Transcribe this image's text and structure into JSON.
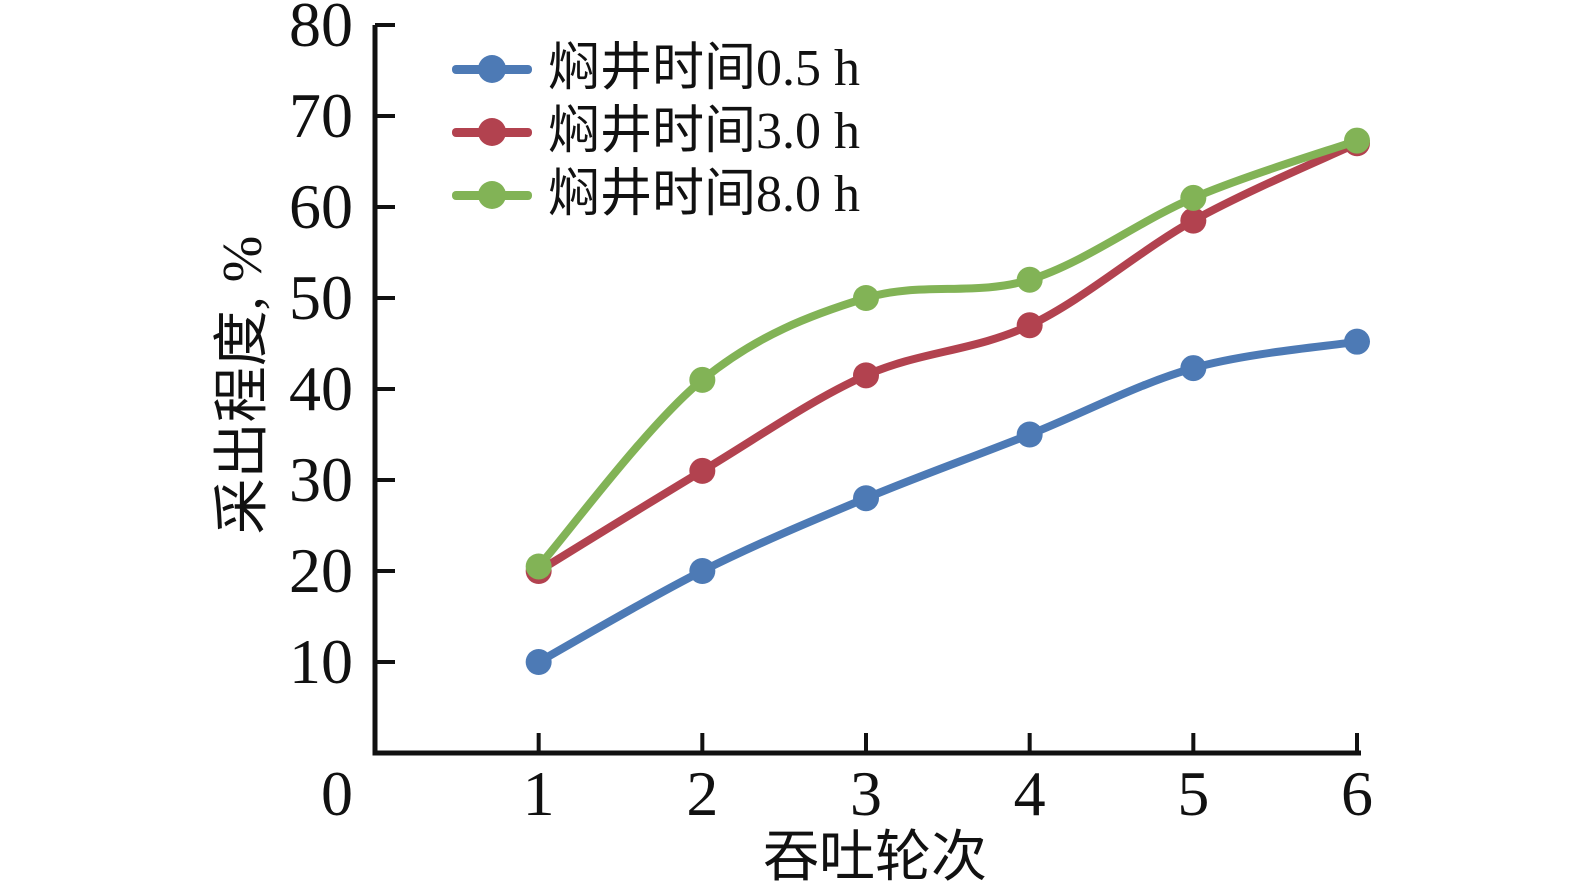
{
  "figure": {
    "background": "#ffffff",
    "axis_color": "#111111"
  },
  "chart_data": {
    "type": "line",
    "title": "",
    "xlabel": "吞吐轮次",
    "ylabel": "采出程度, %",
    "x": [
      1,
      2,
      3,
      4,
      5,
      6
    ],
    "xlim": [
      0,
      6
    ],
    "ylim": [
      0,
      80
    ],
    "xticks": [
      0,
      1,
      2,
      3,
      4,
      5,
      6
    ],
    "yticks": [
      10,
      20,
      30,
      40,
      50,
      60,
      70,
      80
    ],
    "grid": false,
    "legend_position": "top-left-inside",
    "marker": "circle",
    "line_style": "smooth",
    "series": [
      {
        "name": "焖井时间0.5 h",
        "color": "#4d7ab5",
        "values": [
          10,
          20,
          28,
          35,
          42.3,
          45.2
        ]
      },
      {
        "name": "焖井时间3.0 h",
        "color": "#b2424f",
        "values": [
          20,
          31,
          41.5,
          47,
          58.5,
          67
        ]
      },
      {
        "name": "焖井时间8.0 h",
        "color": "#82b356",
        "values": [
          20.5,
          41,
          50,
          52,
          61,
          67.3
        ]
      }
    ]
  }
}
